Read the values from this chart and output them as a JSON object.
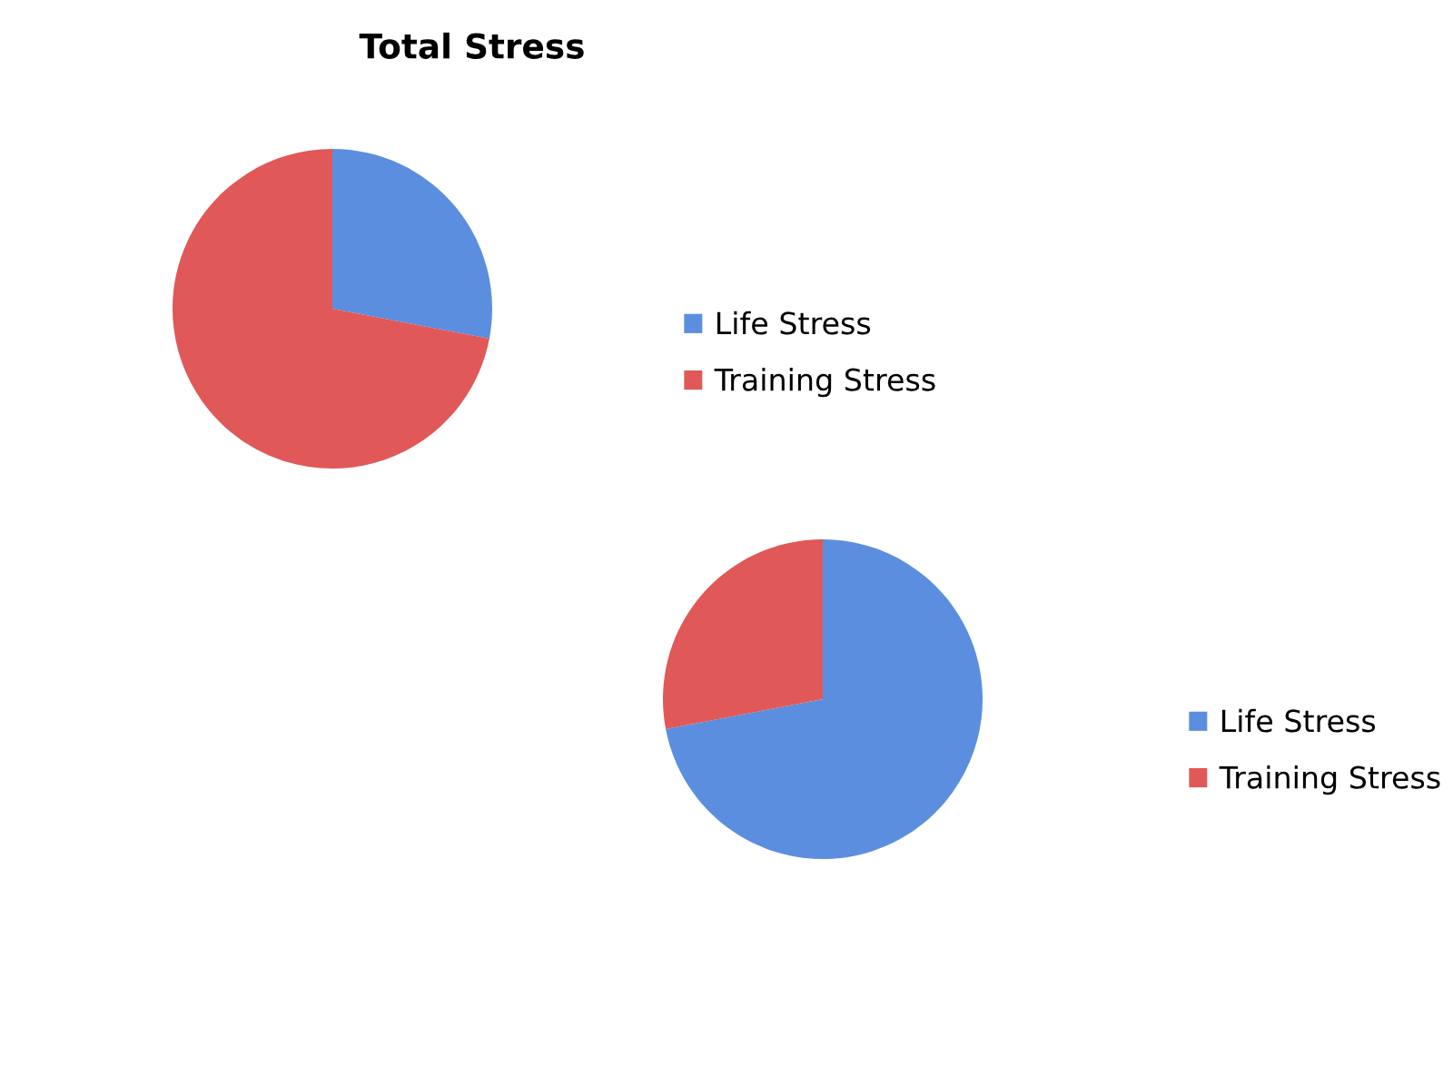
{
  "chart_data": [
    {
      "type": "pie",
      "title": "Total Stress",
      "categories": [
        "Life Stress",
        "Training Stress"
      ],
      "values": [
        28,
        72
      ],
      "colors": [
        "#5b8ede",
        "#e05858"
      ],
      "legend": "right"
    },
    {
      "type": "pie",
      "categories": [
        "Life Stress",
        "Training Stress"
      ],
      "values": [
        72,
        28
      ],
      "colors": [
        "#5b8ede",
        "#e05858"
      ],
      "legend": "right"
    }
  ]
}
